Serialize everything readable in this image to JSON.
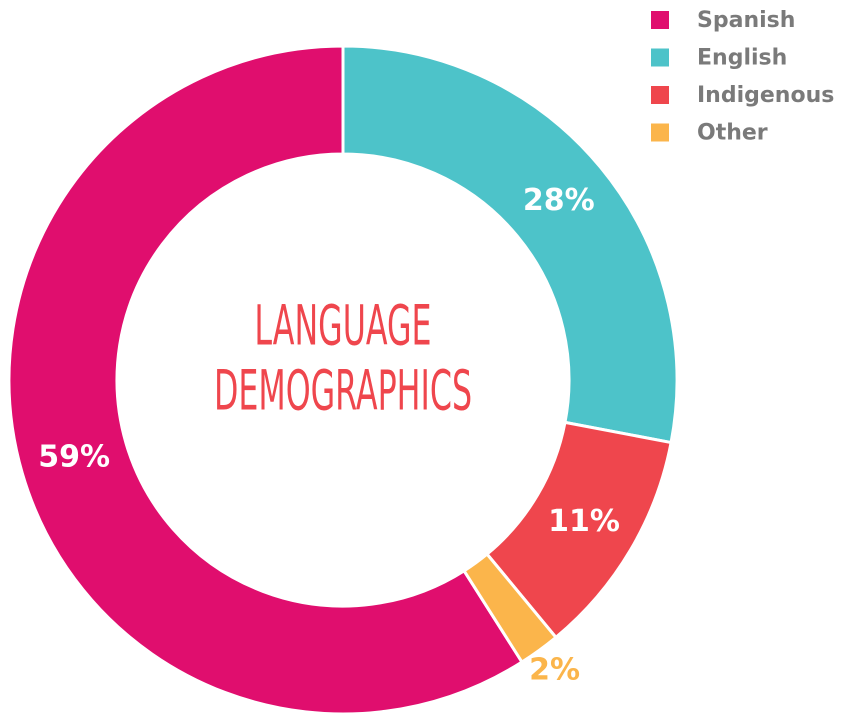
{
  "chart_data": {
    "type": "donut",
    "title": "LANGUAGE DEMOGRAPHICS",
    "categories": [
      "Spanish",
      "English",
      "Indigenous",
      "Other"
    ],
    "values": [
      59,
      28,
      11,
      2
    ],
    "value_labels": [
      "59%",
      "28%",
      "11%",
      "2%"
    ],
    "colors": [
      "#e00e6e",
      "#4dc3c9",
      "#ef464d",
      "#fbb54b"
    ],
    "legend": "top-right"
  }
}
